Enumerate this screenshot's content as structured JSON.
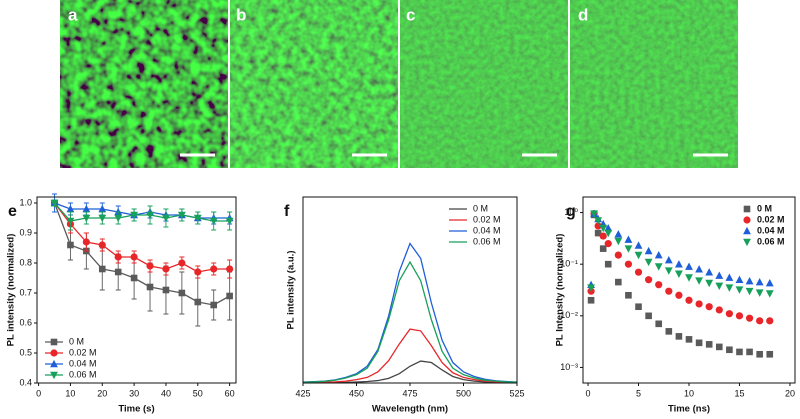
{
  "panels": [
    {
      "label": "a"
    },
    {
      "label": "b"
    },
    {
      "label": "c"
    },
    {
      "label": "d"
    }
  ],
  "chart_data": [
    {
      "type": "line",
      "panel_label": "e",
      "x_label": "Time (s)",
      "y_label": "PL intensity (normalized)",
      "x": [
        5,
        10,
        15,
        20,
        25,
        30,
        35,
        40,
        45,
        50,
        55,
        60
      ],
      "xlim": [
        -0.5,
        62
      ],
      "xticks": [
        0,
        10,
        20,
        30,
        40,
        50,
        60
      ],
      "ylim": [
        0.4,
        1.02
      ],
      "yticks": [
        {
          "value": 0.4,
          "label": "0.4"
        },
        {
          "value": 0.5,
          "label": "0.5"
        },
        {
          "value": 0.6,
          "label": "0.6"
        },
        {
          "value": 0.7,
          "label": "0.7"
        },
        {
          "value": 0.8,
          "label": "0.8"
        },
        {
          "value": 0.9,
          "label": "0.9"
        },
        {
          "value": 1.0,
          "label": "1.0"
        }
      ],
      "legend": "lower left",
      "series": [
        {
          "name": "0 M",
          "color": "#5a5a5a",
          "marker": "square",
          "values": [
            1.0,
            0.86,
            0.84,
            0.78,
            0.77,
            0.75,
            0.72,
            0.71,
            0.7,
            0.67,
            0.66,
            0.69
          ],
          "errors": [
            0.01,
            0.05,
            0.06,
            0.07,
            0.06,
            0.07,
            0.08,
            0.08,
            0.07,
            0.08,
            0.05,
            0.08
          ]
        },
        {
          "name": "0.02 M",
          "color": "#e8262a",
          "marker": "circle",
          "values": [
            1.0,
            0.93,
            0.87,
            0.86,
            0.82,
            0.82,
            0.79,
            0.78,
            0.8,
            0.77,
            0.78,
            0.78
          ],
          "errors": [
            0.01,
            0.03,
            0.03,
            0.02,
            0.02,
            0.02,
            0.02,
            0.02,
            0.02,
            0.02,
            0.02,
            0.03
          ]
        },
        {
          "name": "0.04 M",
          "color": "#1e5ed8",
          "marker": "triangle-up",
          "values": [
            1.0,
            0.98,
            0.98,
            0.98,
            0.97,
            0.96,
            0.97,
            0.96,
            0.96,
            0.95,
            0.95,
            0.95
          ],
          "errors": [
            0.03,
            0.02,
            0.02,
            0.02,
            0.02,
            0.02,
            0.02,
            0.02,
            0.02,
            0.02,
            0.02,
            0.02
          ]
        },
        {
          "name": "0.06 M",
          "color": "#17a05a",
          "marker": "triangle-down",
          "values": [
            1.0,
            0.94,
            0.95,
            0.95,
            0.95,
            0.96,
            0.96,
            0.95,
            0.96,
            0.95,
            0.94,
            0.94
          ],
          "errors": [
            0.01,
            0.03,
            0.02,
            0.02,
            0.02,
            0.02,
            0.03,
            0.03,
            0.02,
            0.02,
            0.03,
            0.03
          ]
        }
      ]
    },
    {
      "type": "line",
      "panel_label": "f",
      "x_label": "Wavelength (nm)",
      "y_label": "PL intensity (a.u.)",
      "x": [
        425,
        430,
        435,
        440,
        445,
        450,
        455,
        460,
        465,
        470,
        475,
        480,
        485,
        490,
        495,
        500,
        505,
        510,
        515,
        520,
        525
      ],
      "xlim": [
        425,
        525
      ],
      "xticks": [
        425,
        450,
        475,
        500,
        525
      ],
      "ylim": [
        0,
        1
      ],
      "legend": "upper right",
      "series": [
        {
          "name": "0 M",
          "color": "#444444",
          "values": [
            0.001,
            0.001,
            0.002,
            0.002,
            0.003,
            0.005,
            0.008,
            0.013,
            0.025,
            0.05,
            0.09,
            0.118,
            0.11,
            0.07,
            0.035,
            0.018,
            0.01,
            0.006,
            0.004,
            0.003,
            0.002
          ]
        },
        {
          "name": "0.02 M",
          "color": "#e8262a",
          "values": [
            0.002,
            0.003,
            0.004,
            0.006,
            0.01,
            0.018,
            0.03,
            0.06,
            0.12,
            0.21,
            0.29,
            0.28,
            0.2,
            0.11,
            0.055,
            0.03,
            0.018,
            0.01,
            0.006,
            0.004,
            0.003
          ]
        },
        {
          "name": "0.04 M",
          "color": "#1e5ed8",
          "values": [
            0.005,
            0.007,
            0.01,
            0.017,
            0.03,
            0.05,
            0.09,
            0.18,
            0.36,
            0.6,
            0.75,
            0.67,
            0.43,
            0.23,
            0.11,
            0.06,
            0.035,
            0.02,
            0.012,
            0.008,
            0.005
          ]
        },
        {
          "name": "0.06 M",
          "color": "#17a05a",
          "values": [
            0.004,
            0.006,
            0.009,
            0.015,
            0.027,
            0.045,
            0.08,
            0.17,
            0.34,
            0.55,
            0.65,
            0.55,
            0.34,
            0.17,
            0.08,
            0.045,
            0.027,
            0.015,
            0.01,
            0.006,
            0.004
          ]
        }
      ]
    },
    {
      "type": "scatter",
      "panel_label": "g",
      "x_label": "Time (ns)",
      "y_label": "PL Intensity (normalized)",
      "x": [
        0.3,
        0.6,
        1,
        1.5,
        2,
        3,
        4,
        5,
        6,
        7,
        8,
        9,
        10,
        11,
        12,
        13,
        14,
        15,
        16,
        17,
        18
      ],
      "xlim": [
        -0.5,
        20.5
      ],
      "xticks": [
        0,
        5,
        10,
        15,
        20
      ],
      "log_y": true,
      "ylim": [
        0.0005,
        2
      ],
      "yticks": [
        {
          "value": 0.001,
          "label": "10⁻³"
        },
        {
          "value": 0.01,
          "label": "10⁻²"
        },
        {
          "value": 0.1,
          "label": "10⁻¹"
        },
        {
          "value": 1,
          "label": "10⁰"
        }
      ],
      "legend": "upper right",
      "series": [
        {
          "name": "0 M",
          "color": "#5a5a5a",
          "marker": "square",
          "values": [
            0.02,
            0.9,
            0.4,
            0.2,
            0.1,
            0.045,
            0.025,
            0.015,
            0.01,
            0.007,
            0.005,
            0.004,
            0.0035,
            0.003,
            0.0028,
            0.0025,
            0.0022,
            0.002,
            0.002,
            0.0018,
            0.0018
          ]
        },
        {
          "name": "0.02 M",
          "color": "#e8262a",
          "marker": "circle",
          "values": [
            0.03,
            0.95,
            0.55,
            0.35,
            0.25,
            0.15,
            0.1,
            0.07,
            0.05,
            0.04,
            0.03,
            0.025,
            0.02,
            0.017,
            0.015,
            0.013,
            0.011,
            0.01,
            0.009,
            0.008,
            0.008
          ]
        },
        {
          "name": "0.04 M",
          "color": "#1e5ed8",
          "marker": "triangle-up",
          "values": [
            0.04,
            0.95,
            0.75,
            0.6,
            0.5,
            0.38,
            0.3,
            0.23,
            0.18,
            0.15,
            0.12,
            0.1,
            0.09,
            0.08,
            0.07,
            0.06,
            0.055,
            0.05,
            0.047,
            0.045,
            0.043
          ]
        },
        {
          "name": "0.06 M",
          "color": "#17a05a",
          "marker": "triangle-down",
          "values": [
            0.035,
            0.95,
            0.7,
            0.5,
            0.4,
            0.28,
            0.2,
            0.15,
            0.11,
            0.09,
            0.075,
            0.065,
            0.055,
            0.048,
            0.043,
            0.038,
            0.035,
            0.032,
            0.03,
            0.028,
            0.027
          ]
        }
      ]
    }
  ]
}
